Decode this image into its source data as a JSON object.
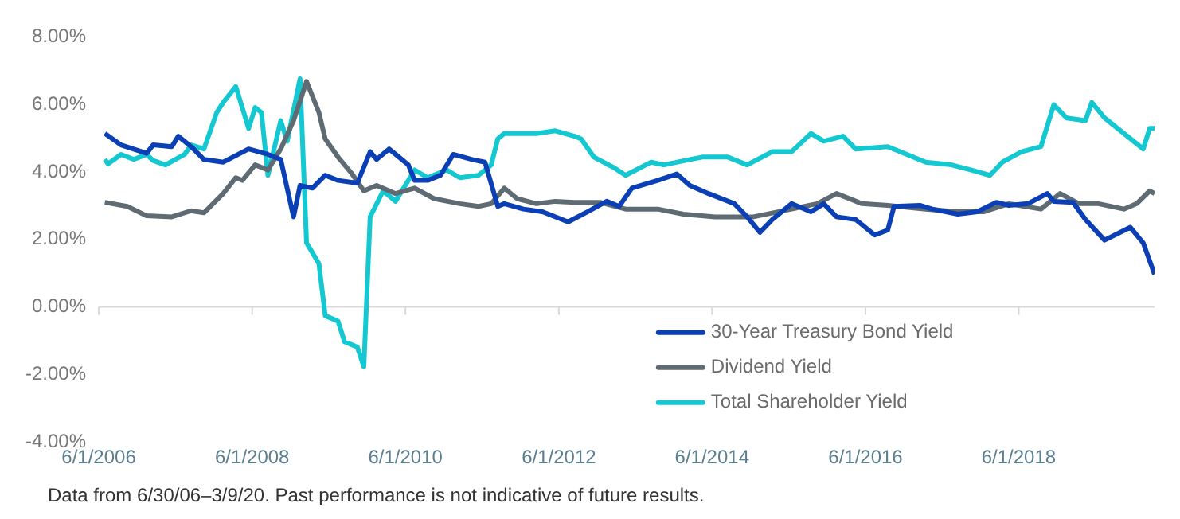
{
  "chart_data": {
    "type": "line",
    "annotations": [
      "Data from 6/30/06–3/9/20. Past performance is not indicative of future results."
    ],
    "xlim": [
      "2006-06-01",
      "2020-03-09"
    ],
    "xticks": [
      {
        "value": "2006-06-01",
        "label": "6/1/2006"
      },
      {
        "value": "2008-06-01",
        "label": "6/1/2008"
      },
      {
        "value": "2010-06-01",
        "label": "6/1/2010"
      },
      {
        "value": "2012-06-01",
        "label": "6/1/2012"
      },
      {
        "value": "2014-06-01",
        "label": "6/1/2014"
      },
      {
        "value": "2016-06-01",
        "label": "6/1/2016"
      },
      {
        "value": "2018-06-01",
        "label": "6/1/2018"
      }
    ],
    "ylim": [
      -4,
      8
    ],
    "yticks": [
      {
        "value": -4,
        "label": "-4.00%"
      },
      {
        "value": -2,
        "label": "-2.00%"
      },
      {
        "value": 0,
        "label": "0.00%"
      },
      {
        "value": 2,
        "label": "2.00%"
      },
      {
        "value": 4,
        "label": "4.00%"
      },
      {
        "value": 6,
        "label": "6.00%"
      },
      {
        "value": 8,
        "label": "8.00%"
      }
    ],
    "grid": false,
    "ref_lines": [
      {
        "axis": "y",
        "value": 0,
        "color": "#d9d9d9"
      }
    ],
    "legend": "bottom right",
    "marker": "none",
    "series": [
      {
        "name": "30-Year Treasury Bond Yield",
        "color": "#0a3fb5",
        "x": [
          "2006-06-30",
          "2006-09",
          "2007-01",
          "2007-02",
          "2007-05",
          "2007-06",
          "2007-08",
          "2007-10",
          "2008-01",
          "2008-05",
          "2008-08",
          "2008-10",
          "2008-12",
          "2009-01",
          "2009-03",
          "2009-05",
          "2009-07",
          "2009-10",
          "2009-12",
          "2010-01",
          "2010-03",
          "2010-06",
          "2010-07",
          "2010-09",
          "2010-11",
          "2011-01",
          "2011-04",
          "2011-06",
          "2011-08",
          "2011-09",
          "2011-12",
          "2012-03",
          "2012-07",
          "2012-10",
          "2013-01",
          "2013-03",
          "2013-05",
          "2013-09",
          "2013-12",
          "2014-02",
          "2014-05",
          "2014-09",
          "2014-11",
          "2015-01",
          "2015-03",
          "2015-06",
          "2015-09",
          "2015-11",
          "2016-01",
          "2016-04",
          "2016-07",
          "2016-09",
          "2016-10",
          "2017-02",
          "2017-04",
          "2017-08",
          "2017-11",
          "2018-02",
          "2018-04",
          "2018-07",
          "2018-10",
          "2018-11",
          "2019-02",
          "2019-04",
          "2019-07",
          "2019-11",
          "2020-01",
          "2020-03-09"
        ],
        "values": [
          5.14,
          4.8,
          4.55,
          4.8,
          4.75,
          5.06,
          4.75,
          4.37,
          4.29,
          4.68,
          4.52,
          4.37,
          2.67,
          3.6,
          3.52,
          3.9,
          3.75,
          3.67,
          4.6,
          4.37,
          4.68,
          4.21,
          3.75,
          3.75,
          3.9,
          4.52,
          4.37,
          4.29,
          2.98,
          3.06,
          2.9,
          2.82,
          2.52,
          2.82,
          3.13,
          2.98,
          3.52,
          3.75,
          3.94,
          3.6,
          3.36,
          3.06,
          2.67,
          2.21,
          2.59,
          3.06,
          2.82,
          3.06,
          2.67,
          2.59,
          2.13,
          2.28,
          2.98,
          3.01,
          2.9,
          2.75,
          2.82,
          3.1,
          3.01,
          3.06,
          3.36,
          3.13,
          3.1,
          2.59,
          1.98,
          2.36,
          1.9,
          0.97
        ]
      },
      {
        "name": "Dividend Yield",
        "color": "#5f6b73",
        "x": [
          "2006-06-30",
          "2006-10",
          "2007-01",
          "2007-05",
          "2007-08",
          "2007-10",
          "2008-01",
          "2008-03",
          "2008-04",
          "2008-06",
          "2008-08",
          "2008-10",
          "2008-12",
          "2009-02",
          "2009-04",
          "2009-05",
          "2009-07",
          "2009-09",
          "2009-11",
          "2010-01",
          "2010-04",
          "2010-07",
          "2010-10",
          "2011-02",
          "2011-05",
          "2011-07",
          "2011-09",
          "2011-11",
          "2012-02",
          "2012-05",
          "2012-08",
          "2012-12",
          "2013-04",
          "2013-09",
          "2014-01",
          "2014-06",
          "2014-12",
          "2015-06",
          "2015-10",
          "2016-01",
          "2016-05",
          "2016-09",
          "2017-03",
          "2017-08",
          "2017-12",
          "2018-04",
          "2018-09",
          "2018-12",
          "2019-03",
          "2019-06",
          "2019-10",
          "2019-12",
          "2020-02",
          "2020-03-09"
        ],
        "values": [
          3.1,
          2.98,
          2.7,
          2.67,
          2.85,
          2.79,
          3.36,
          3.83,
          3.75,
          4.21,
          4.06,
          4.68,
          5.52,
          6.68,
          5.76,
          4.98,
          4.44,
          3.98,
          3.44,
          3.6,
          3.36,
          3.52,
          3.21,
          3.06,
          2.98,
          3.06,
          3.52,
          3.21,
          3.06,
          3.13,
          3.1,
          3.1,
          2.9,
          2.9,
          2.75,
          2.67,
          2.67,
          2.9,
          3.06,
          3.36,
          3.06,
          3.01,
          2.9,
          2.82,
          2.82,
          3.06,
          2.9,
          3.36,
          3.06,
          3.06,
          2.9,
          3.06,
          3.44,
          3.36
        ]
      },
      {
        "name": "Total Shareholder Yield",
        "color": "#14c8d2",
        "x": [
          "2006-06-30",
          "2006-07",
          "2006-09",
          "2006-11",
          "2007-01",
          "2007-02",
          "2007-04",
          "2007-07",
          "2007-08",
          "2007-10",
          "2007-12",
          "2008-01",
          "2008-03",
          "2008-05",
          "2008-06",
          "2008-07",
          "2008-08",
          "2008-10",
          "2008-11",
          "2009-01",
          "2009-02",
          "2009-04",
          "2009-05",
          "2009-07",
          "2009-08",
          "2009-10",
          "2009-11",
          "2009-12",
          "2010-02",
          "2010-04",
          "2010-06",
          "2010-07",
          "2010-09",
          "2010-12",
          "2011-02",
          "2011-05",
          "2011-07",
          "2011-08",
          "2011-09",
          "2011-11",
          "2012-02",
          "2012-05",
          "2012-08",
          "2012-09",
          "2012-11",
          "2013-02",
          "2013-04",
          "2013-08",
          "2013-10",
          "2014-02",
          "2014-04",
          "2014-08",
          "2014-11",
          "2015-03",
          "2015-06",
          "2015-09",
          "2015-11",
          "2016-02",
          "2016-04",
          "2016-09",
          "2016-12",
          "2017-03",
          "2017-07",
          "2017-10",
          "2018-01",
          "2018-03",
          "2018-06",
          "2018-09",
          "2018-11",
          "2019-01",
          "2019-04",
          "2019-05",
          "2019-07",
          "2019-10",
          "2020-01",
          "2020-02",
          "2020-03-09"
        ],
        "values": [
          4.37,
          4.24,
          4.52,
          4.37,
          4.52,
          4.34,
          4.21,
          4.52,
          4.8,
          4.68,
          5.76,
          6.06,
          6.53,
          5.29,
          5.91,
          5.76,
          3.9,
          5.52,
          4.91,
          6.76,
          1.9,
          1.28,
          -0.26,
          -0.42,
          -1.03,
          -1.19,
          -1.77,
          2.67,
          3.44,
          3.13,
          3.75,
          4.06,
          3.83,
          4.06,
          3.83,
          3.9,
          4.21,
          4.98,
          5.14,
          5.14,
          5.14,
          5.22,
          5.06,
          4.98,
          4.44,
          4.14,
          3.9,
          4.29,
          4.21,
          4.37,
          4.44,
          4.44,
          4.21,
          4.6,
          4.6,
          5.14,
          4.91,
          5.06,
          4.68,
          4.75,
          4.52,
          4.29,
          4.21,
          4.06,
          3.9,
          4.29,
          4.6,
          4.75,
          5.99,
          5.6,
          5.52,
          6.06,
          5.6,
          5.14,
          4.68,
          5.29,
          5.29
        ]
      }
    ]
  }
}
